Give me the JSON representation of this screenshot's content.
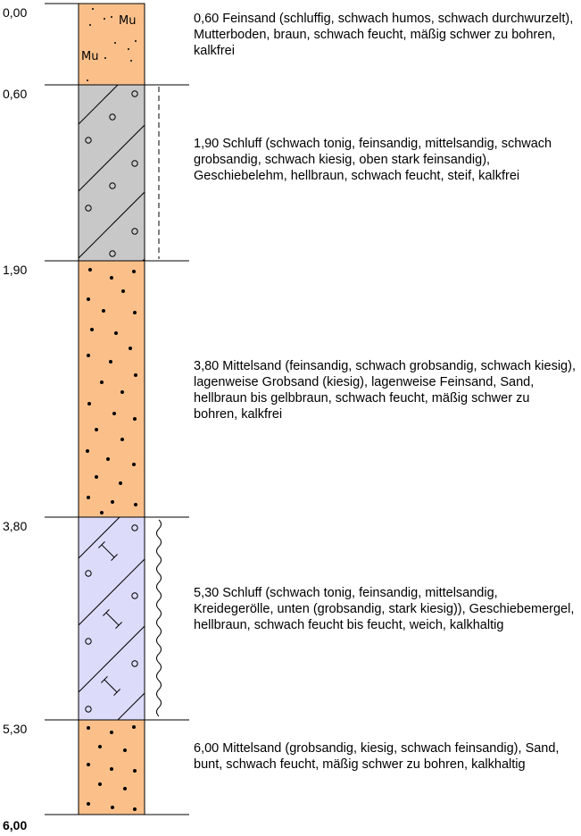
{
  "layers": [
    {
      "top": "0,00",
      "bottom": "0,60",
      "description": "0,60  Feinsand (schluffig, schwach humos, schwach durchwurzelt), Mutterboden, braun, schwach feucht, mäßig schwer zu bohren, kalkfrei",
      "fill": "#FBC08A",
      "pattern": "topsoil",
      "symbol_text": "Mu",
      "consistency_marker": "none"
    },
    {
      "top": "0,60",
      "bottom": "1,90",
      "description": "1,90  Schluff (schwach tonig, feinsandig, mittelsandig, schwach grobsandig, schwach kiesig, oben stark feinsandig), Geschiebelehm, hellbraun, schwach feucht, steif, kalkfrei",
      "fill": "#C8C8C8",
      "pattern": "hatch-circles",
      "consistency_marker": "dashed"
    },
    {
      "top": "1,90",
      "bottom": "3,80",
      "description": "3,80  Mittelsand (feinsandig, schwach grobsandig, schwach kiesig), lagenweise Grobsand (kiesig), lagenweise Feinsand, Sand, hellbraun bis gelbbraun, schwach feucht, mäßig schwer zu bohren, kalkfrei",
      "fill": "#FBC08A",
      "pattern": "dots",
      "consistency_marker": "none"
    },
    {
      "top": "3,80",
      "bottom": "5,30",
      "description": "5,30  Schluff (schwach tonig, feinsandig, mittelsandig, Kreidegerölle, unten (grobsandig, stark kiesig)), Geschiebemergel, hellbraun, schwach feucht bis feucht, weich, kalkhaltig",
      "fill": "#DCDCFA",
      "pattern": "hatch-circles-I",
      "consistency_marker": "wavy"
    },
    {
      "top": "5,30",
      "bottom": "6,00",
      "description": "6,00  Mittelsand (grobsandig, kiesig, schwach feinsandig), Sand, bunt, schwach feucht, mäßig schwer zu bohren, kalkhaltig",
      "fill": "#FBC08A",
      "pattern": "dots",
      "consistency_marker": "none"
    }
  ],
  "depth_labels": [
    "0,00",
    "0,60",
    "1,90",
    "3,80",
    "5,30",
    "6,00"
  ],
  "final_depth_label": "6,00"
}
